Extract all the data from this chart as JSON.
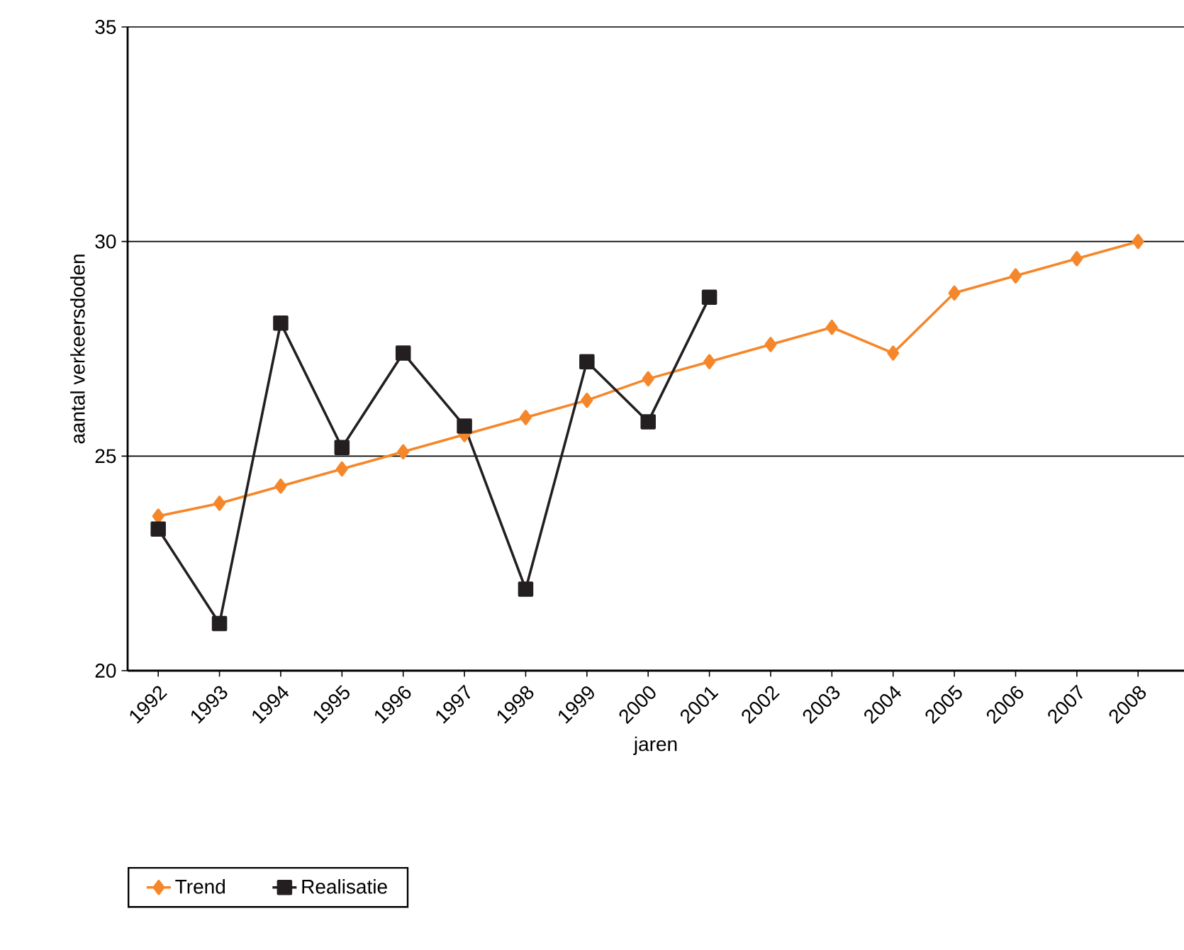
{
  "chart_data": {
    "type": "line",
    "xlabel": "jaren",
    "ylabel": "aantal verkeersdoden",
    "categories": [
      "1992",
      "1993",
      "1994",
      "1995",
      "1996",
      "1997",
      "1998",
      "1999",
      "2000",
      "2001",
      "2002",
      "2003",
      "2004",
      "2005",
      "2006",
      "2007",
      "2008"
    ],
    "series": [
      {
        "name": "Trend",
        "color": "#f5872a",
        "marker": "diamond",
        "values": [
          23.6,
          23.9,
          24.3,
          24.7,
          25.1,
          25.5,
          25.9,
          26.3,
          26.8,
          27.2,
          27.6,
          28.0,
          27.4,
          28.8,
          29.2,
          29.6,
          30.0
        ]
      },
      {
        "name": "Realisatie",
        "color": "#231f20",
        "marker": "square",
        "values": [
          23.3,
          21.1,
          28.1,
          25.2,
          27.4,
          25.7,
          21.9,
          27.2,
          25.8,
          28.7,
          null,
          null,
          null,
          null,
          null,
          null,
          null
        ]
      }
    ],
    "ylim": [
      20,
      35
    ],
    "yticks": [
      20,
      25,
      30,
      35
    ],
    "grid": "y",
    "legend": "bottom",
    "line_style": "solid"
  }
}
